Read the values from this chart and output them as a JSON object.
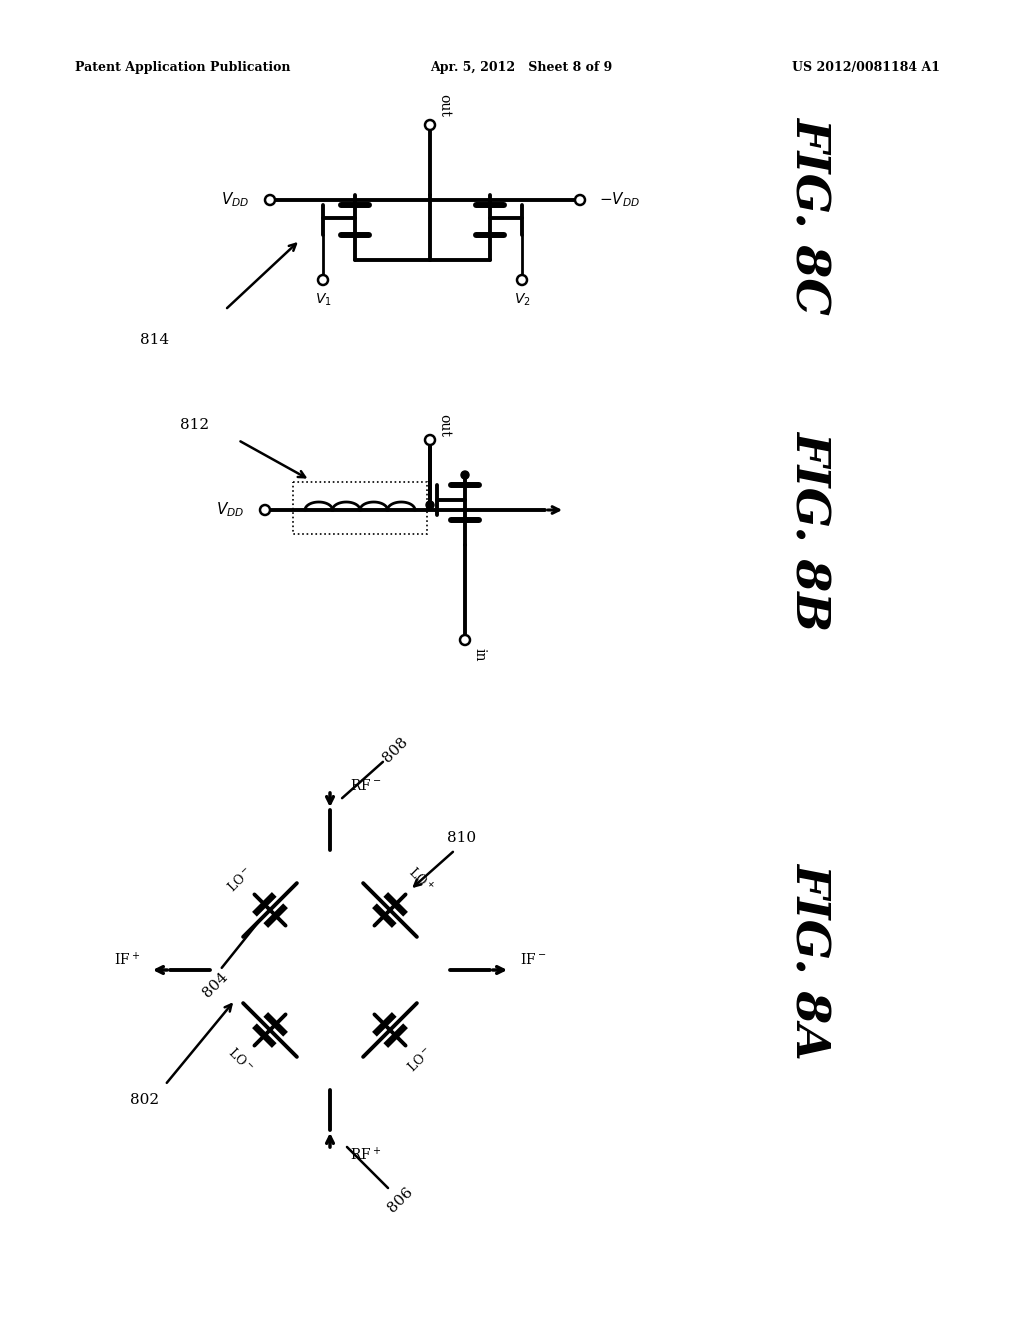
{
  "header_left": "Patent Application Publication",
  "header_center": "Apr. 5, 2012   Sheet 8 of 9",
  "header_right": "US 2012/0081184 A1",
  "bg_color": "#ffffff",
  "line_color": "#000000",
  "fig8c_label": "FIG. 8C",
  "fig8b_label": "FIG. 8B",
  "fig8a_label": "FIG. 8A",
  "ref_814": "814",
  "ref_812": "812",
  "ref_802": "802",
  "ref_804": "804",
  "ref_806": "806",
  "ref_808": "808",
  "ref_810": "810"
}
